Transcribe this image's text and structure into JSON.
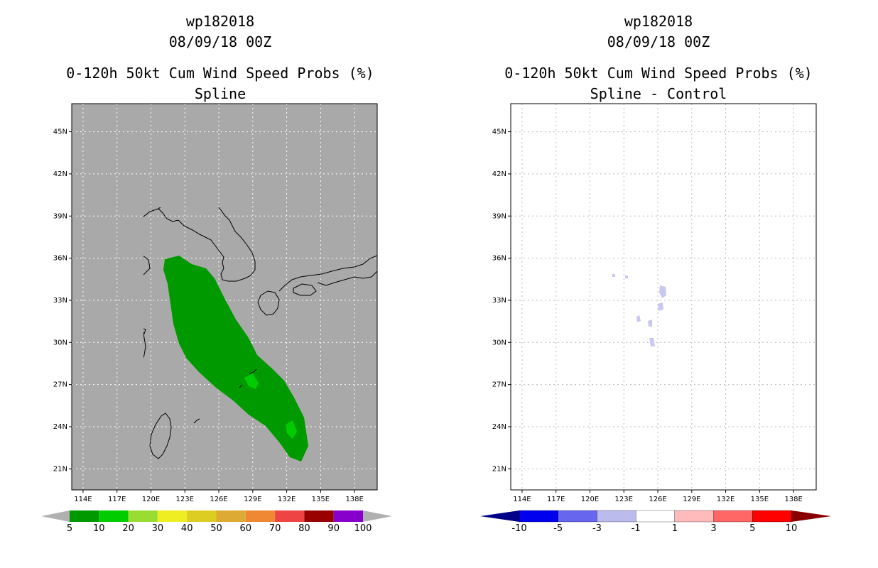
{
  "panels": [
    {
      "storm_id": "wp182018",
      "datetime": "08/09/18 00Z",
      "product": "0-120h 50kt Cum Wind Speed Probs (%)",
      "method": "Spline",
      "background": "#a9a9a9",
      "grid_color": "#ffffff"
    },
    {
      "storm_id": "wp182018",
      "datetime": "08/09/18 00Z",
      "product": "0-120h 50kt Cum Wind Speed Probs (%)",
      "method": "Spline - Control",
      "background": "#ffffff",
      "grid_color": "#bbbbbb"
    }
  ],
  "map": {
    "lon_range": [
      113,
      140
    ],
    "lat_range": [
      19.5,
      47
    ],
    "lon_ticks": [
      "114E",
      "117E",
      "120E",
      "123E",
      "126E",
      "129E",
      "132E",
      "135E",
      "138E"
    ],
    "lat_ticks": [
      "45N",
      "42N",
      "39N",
      "36N",
      "33N",
      "30N",
      "27N",
      "24N",
      "21N"
    ]
  },
  "colorbar_left": {
    "labels": [
      "5",
      "10",
      "20",
      "30",
      "40",
      "50",
      "60",
      "70",
      "80",
      "90",
      "100"
    ],
    "colors": [
      "#009900",
      "#00cc00",
      "#99dd33",
      "#eeee22",
      "#ddcc22",
      "#ddaa33",
      "#ee8833",
      "#ee4444",
      "#990000",
      "#8800cc"
    ],
    "end_color": "#b0b0b0"
  },
  "colorbar_right": {
    "labels": [
      "-10",
      "-5",
      "-3",
      "-1",
      "1",
      "3",
      "5",
      "10"
    ],
    "colors": [
      "#0000ee",
      "#6666ee",
      "#bbbbee",
      "#ffffff",
      "#ffbbbb",
      "#ff6666",
      "#ff0000"
    ],
    "low_end": "#000088",
    "high_end": "#880000"
  },
  "prob_colors": {
    "band_5_10": "#009900",
    "band_10_20": "#00cc00"
  },
  "diff_color": "#c8c8f0"
}
